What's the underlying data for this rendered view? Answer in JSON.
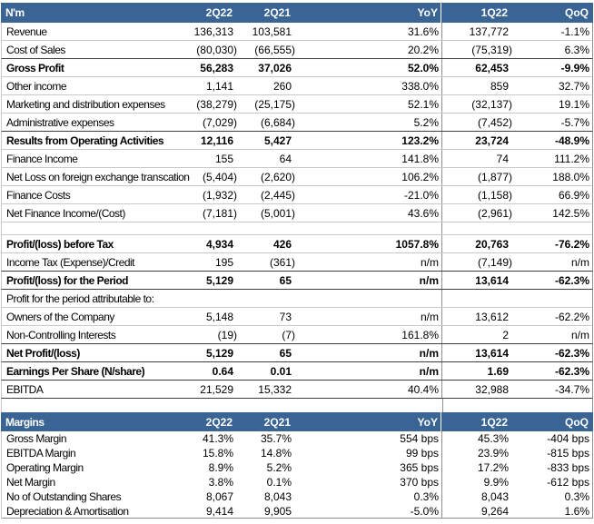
{
  "colors": {
    "header_bg": "#396493",
    "header_text": "#FFFFFF",
    "grid_light": "#C9C9C9",
    "grid_mid": "#909090",
    "grid_dark": "#3F3F3F",
    "body_text": "#000000"
  },
  "tables": [
    {
      "name": "income-statement",
      "unit_label": "N'm",
      "columns": [
        "N'm",
        "2Q22",
        "2Q21",
        "YoY",
        "1Q22",
        "QoQ"
      ],
      "rows": [
        {
          "cells": [
            "Revenue",
            "136,313",
            "103,581",
            "31.6%",
            "137,772",
            "-1.1%"
          ],
          "bb": "light"
        },
        {
          "cells": [
            "Cost of Sales",
            "(80,030)",
            "(66,555)",
            "20.2%",
            "(75,319)",
            "6.3%"
          ],
          "bb": "dark"
        },
        {
          "cells": [
            "Gross Profit",
            "56,283",
            "37,026",
            "52.0%",
            "62,453",
            "-9.9%"
          ],
          "bold": true,
          "bb": "light"
        },
        {
          "cells": [
            "Other income",
            "1,141",
            "260",
            "338.0%",
            "859",
            "32.7%"
          ],
          "bb": "light"
        },
        {
          "cells": [
            "Marketing and distribution expenses",
            "(38,279)",
            "(25,175)",
            "52.1%",
            "(32,137)",
            "19.1%"
          ],
          "bb": "light"
        },
        {
          "cells": [
            "Administrative expenses",
            "(7,029)",
            "(6,684)",
            "5.2%",
            "(7,452)",
            "-5.7%"
          ],
          "bb": "dark"
        },
        {
          "cells": [
            "Results from Operating Activities",
            "12,116",
            "5,427",
            "123.2%",
            "23,724",
            "-48.9%"
          ],
          "bold": true,
          "bb": "light"
        },
        {
          "cells": [
            "Finance Income",
            "155",
            "64",
            "141.8%",
            "74",
            "111.2%"
          ],
          "bb": "light"
        },
        {
          "cells": [
            "Net Loss on foreign exchange transcation",
            "(5,404)",
            "(2,620)",
            "106.2%",
            "(1,877)",
            "188.0%"
          ],
          "bb": "light"
        },
        {
          "cells": [
            "Finance Costs",
            "(1,932)",
            "(2,445)",
            "-21.0%",
            "(1,158)",
            "66.9%"
          ],
          "bb": "light"
        },
        {
          "cells": [
            "Net Finance Income/(Cost)",
            "(7,181)",
            "(5,001)",
            "43.6%",
            "(2,961)",
            "142.5%"
          ],
          "bb": "light"
        },
        {
          "cells": [
            "",
            "",
            "",
            "",
            "",
            ""
          ],
          "blank": true,
          "bb": "light"
        },
        {
          "cells": [
            "Profit/(loss) before Tax",
            "4,934",
            "426",
            "1057.8%",
            "20,763",
            "-76.2%"
          ],
          "bold": true,
          "bb": "light"
        },
        {
          "cells": [
            "Income Tax (Expense)/Credit",
            "195",
            "(361)",
            "n/m",
            "(7,149)",
            "n/m"
          ],
          "bb": "dark"
        },
        {
          "cells": [
            "Profit/(loss) for the Period",
            "5,129",
            "65",
            "n/m",
            "13,614",
            "-62.3%"
          ],
          "bold": true,
          "bb": "dark"
        },
        {
          "cells": [
            "Profit for the period attributable to:",
            "",
            "",
            "",
            "",
            ""
          ],
          "bb": "light"
        },
        {
          "cells": [
            "Owners of the Company",
            "5,148",
            "73",
            "n/m",
            "13,612",
            "-62.2%"
          ],
          "bb": "light"
        },
        {
          "cells": [
            "Non-Controlling Interests",
            "(19)",
            "(7)",
            "161.8%",
            "2",
            "n/m"
          ],
          "bb": "dark"
        },
        {
          "cells": [
            "Net Profit/(loss)",
            "5,129",
            "65",
            "n/m",
            "13,614",
            "-62.3%"
          ],
          "bold": true,
          "bb": "dark"
        },
        {
          "cells": [
            "Earnings Per Share (N/share)",
            "0.64",
            "0.01",
            "n/m",
            "1.69",
            "-62.3%"
          ],
          "bold": true,
          "bb": "dark"
        },
        {
          "cells": [
            "EBITDA",
            "21,529",
            "15,332",
            "40.4%",
            "32,988",
            "-34.7%"
          ],
          "bb": "dark"
        }
      ]
    },
    {
      "name": "margins",
      "columns": [
        "Margins",
        "2Q22",
        "2Q21",
        "YoY",
        "1Q22",
        "QoQ"
      ],
      "rows": [
        {
          "cells": [
            "Gross Margin",
            "41.3%",
            "35.7%",
            "554 bps",
            "45.3%",
            "-404 bps"
          ],
          "bb": "none"
        },
        {
          "cells": [
            "EBITDA Margin",
            "15.8%",
            "14.8%",
            "99 bps",
            "23.9%",
            "-815 bps"
          ],
          "bb": "none"
        },
        {
          "cells": [
            "Operating Margin",
            "8.9%",
            "5.2%",
            "365 bps",
            "17.2%",
            "-833 bps"
          ],
          "bb": "none"
        },
        {
          "cells": [
            "Net Margin",
            "3.8%",
            "0.1%",
            "370 bps",
            "9.9%",
            "-612 bps"
          ],
          "bb": "none"
        },
        {
          "cells": [
            "No of Outstanding Shares",
            "8,067",
            "8,043",
            "0.3%",
            "8,043",
            "0.3%"
          ],
          "bb": "none"
        },
        {
          "cells": [
            "Depreciation & Amortisation",
            "9,414",
            "9,905",
            "-5.0%",
            "9,264",
            "1.6%"
          ],
          "bb": "mid"
        }
      ]
    }
  ]
}
